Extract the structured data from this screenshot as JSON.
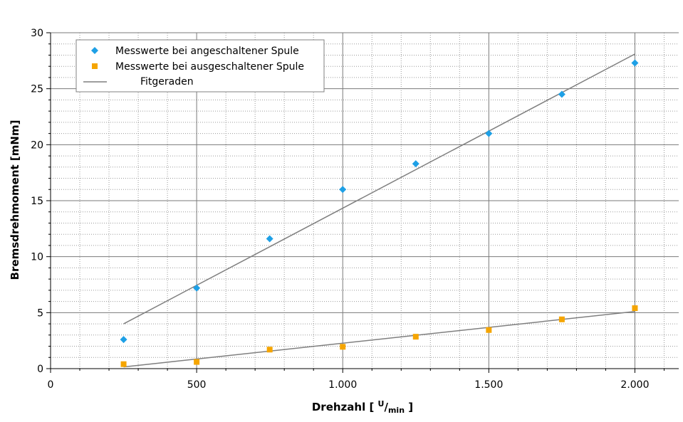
{
  "chart_data": {
    "type": "scatter",
    "xlabel": "Drehzahl [ U/min ]",
    "xlabel_parts": {
      "pre": "Drehzahl [ ",
      "sup": "U",
      "slash": "/",
      "sub": "min",
      "post": " ]"
    },
    "ylabel": "Bremsdrehmoment [mNm]",
    "xlim": [
      0,
      2150
    ],
    "ylim": [
      0,
      30
    ],
    "x_ticks": [
      0,
      500,
      1000,
      1500,
      2000
    ],
    "x_tick_labels": [
      "0",
      "500",
      "1.000",
      "1.500",
      "2.000"
    ],
    "y_ticks": [
      0,
      5,
      10,
      15,
      20,
      25,
      30
    ],
    "y_tick_labels": [
      "0",
      "5",
      "10",
      "15",
      "20",
      "25",
      "30"
    ],
    "grid": true,
    "legend_position": "top-left",
    "series": [
      {
        "name": "Messwerte bei angeschaltener Spule",
        "marker": "diamond",
        "color": "#1EA0E6",
        "x": [
          250,
          500,
          750,
          1000,
          1250,
          1500,
          1750,
          2000
        ],
        "y": [
          2.6,
          7.2,
          11.6,
          16.0,
          18.3,
          21.0,
          24.5,
          27.3
        ]
      },
      {
        "name": "Messwerte bei ausgeschaltener Spule",
        "marker": "square",
        "color": "#F5A500",
        "x": [
          250,
          500,
          750,
          1000,
          1250,
          1500,
          1750,
          2000
        ],
        "y": [
          0.4,
          0.6,
          1.7,
          1.95,
          2.85,
          3.45,
          4.4,
          5.4
        ]
      }
    ],
    "fit_lines": {
      "name": "Fitgeraden",
      "color": "#7F7F7F",
      "lines": [
        {
          "x": [
            250,
            2000
          ],
          "y": [
            4.0,
            28.1
          ]
        },
        {
          "x": [
            250,
            2000
          ],
          "y": [
            0.15,
            5.1
          ]
        }
      ]
    }
  }
}
